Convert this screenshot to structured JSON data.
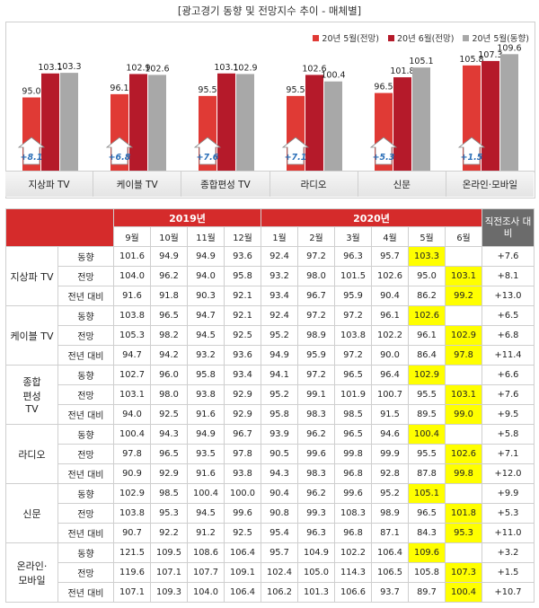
{
  "title": "[광고경기 동향 및 전망지수 추이 - 매체별]",
  "legend": [
    {
      "label": "20년 5월(전망)",
      "color": "#e03a35"
    },
    {
      "label": "20년 6월(전망)",
      "color": "#b51a2a"
    },
    {
      "label": "20년 5월(동향)",
      "color": "#a8a8a8"
    }
  ],
  "chart_data": {
    "type": "bar",
    "title": "[광고경기 동향 및 전망지수 추이 - 매체별]",
    "categories": [
      "지상파 TV",
      "케이블 TV",
      "종합편성 TV",
      "라디오",
      "신문",
      "온라인·모바일"
    ],
    "series": [
      {
        "name": "20년 5월(전망)",
        "values": [
          95.0,
          96.1,
          95.5,
          95.5,
          96.5,
          105.8
        ]
      },
      {
        "name": "20년 6월(전망)",
        "values": [
          103.1,
          102.9,
          103.1,
          102.6,
          101.8,
          107.3
        ]
      },
      {
        "name": "20년 5월(동향)",
        "values": [
          103.3,
          102.6,
          102.9,
          100.4,
          105.1,
          109.6
        ]
      }
    ],
    "changes": [
      "+8.1",
      "+6.8",
      "+7.6",
      "+7.1",
      "+5.3",
      "+1.5"
    ]
  },
  "table": {
    "year_2019": "2019년",
    "year_2020": "2020년",
    "last_col_header": "직전조사 대비",
    "months_2019": [
      "9월",
      "10월",
      "11월",
      "12월"
    ],
    "months_2020": [
      "1월",
      "2월",
      "3월",
      "4월",
      "5월",
      "6월"
    ],
    "groups": [
      {
        "name": "지상파 TV",
        "rows": [
          {
            "label": "동향",
            "v": [
              "101.6",
              "94.9",
              "94.9",
              "93.6",
              "92.4",
              "97.2",
              "96.3",
              "95.7",
              "103.3",
              ""
            ],
            "diff": "+7.6"
          },
          {
            "label": "전망",
            "v": [
              "104.0",
              "96.2",
              "94.0",
              "95.8",
              "93.2",
              "98.0",
              "101.5",
              "102.6",
              "95.0",
              "103.1"
            ],
            "diff": "+8.1"
          },
          {
            "label": "전년 대비",
            "v": [
              "91.6",
              "91.8",
              "90.3",
              "92.1",
              "93.4",
              "96.7",
              "95.9",
              "90.4",
              "86.2",
              "99.2"
            ],
            "diff": "+13.0"
          }
        ]
      },
      {
        "name": "케이블 TV",
        "rows": [
          {
            "label": "동향",
            "v": [
              "103.8",
              "96.5",
              "94.7",
              "92.1",
              "92.4",
              "97.2",
              "97.2",
              "96.1",
              "102.6",
              ""
            ],
            "diff": "+6.5"
          },
          {
            "label": "전망",
            "v": [
              "105.3",
              "98.2",
              "94.5",
              "92.5",
              "95.2",
              "98.9",
              "103.8",
              "102.2",
              "96.1",
              "102.9"
            ],
            "diff": "+6.8"
          },
          {
            "label": "전년 대비",
            "v": [
              "94.7",
              "94.2",
              "93.2",
              "93.6",
              "94.9",
              "95.9",
              "97.2",
              "90.0",
              "86.4",
              "97.8"
            ],
            "diff": "+11.4"
          }
        ]
      },
      {
        "name": "종합\n편성\nTV",
        "rows": [
          {
            "label": "동향",
            "v": [
              "102.7",
              "96.0",
              "95.8",
              "93.4",
              "94.1",
              "97.2",
              "96.5",
              "96.4",
              "102.9",
              ""
            ],
            "diff": "+6.6"
          },
          {
            "label": "전망",
            "v": [
              "103.1",
              "98.0",
              "93.8",
              "92.9",
              "95.2",
              "99.1",
              "101.9",
              "100.7",
              "95.5",
              "103.1"
            ],
            "diff": "+7.6"
          },
          {
            "label": "전년 대비",
            "v": [
              "94.0",
              "92.5",
              "91.6",
              "92.9",
              "95.8",
              "98.3",
              "98.5",
              "91.5",
              "89.5",
              "99.0"
            ],
            "diff": "+9.5"
          }
        ]
      },
      {
        "name": "라디오",
        "rows": [
          {
            "label": "동향",
            "v": [
              "100.4",
              "94.3",
              "94.9",
              "96.7",
              "93.9",
              "96.2",
              "96.5",
              "94.6",
              "100.4",
              ""
            ],
            "diff": "+5.8"
          },
          {
            "label": "전망",
            "v": [
              "97.8",
              "96.5",
              "93.5",
              "97.8",
              "90.5",
              "99.6",
              "99.8",
              "99.9",
              "95.5",
              "102.6"
            ],
            "diff": "+7.1"
          },
          {
            "label": "전년 대비",
            "v": [
              "90.9",
              "92.9",
              "91.6",
              "93.8",
              "94.3",
              "98.3",
              "96.8",
              "92.8",
              "87.8",
              "99.8"
            ],
            "diff": "+12.0"
          }
        ]
      },
      {
        "name": "신문",
        "rows": [
          {
            "label": "동향",
            "v": [
              "102.9",
              "98.5",
              "100.4",
              "100.0",
              "90.4",
              "96.2",
              "99.6",
              "95.2",
              "105.1",
              ""
            ],
            "diff": "+9.9"
          },
          {
            "label": "전망",
            "v": [
              "103.8",
              "95.3",
              "94.5",
              "99.6",
              "90.8",
              "99.3",
              "108.3",
              "98.9",
              "96.5",
              "101.8"
            ],
            "diff": "+5.3"
          },
          {
            "label": "전년 대비",
            "v": [
              "90.7",
              "92.2",
              "91.2",
              "92.5",
              "95.4",
              "96.3",
              "96.8",
              "87.1",
              "84.3",
              "95.3"
            ],
            "diff": "+11.0"
          }
        ]
      },
      {
        "name": "온라인·\n모바일",
        "rows": [
          {
            "label": "동향",
            "v": [
              "121.5",
              "109.5",
              "108.6",
              "106.4",
              "95.7",
              "104.9",
              "102.2",
              "106.4",
              "109.6",
              ""
            ],
            "diff": "+3.2"
          },
          {
            "label": "전망",
            "v": [
              "119.6",
              "107.1",
              "107.7",
              "109.1",
              "102.4",
              "105.0",
              "114.3",
              "106.5",
              "105.8",
              "107.3"
            ],
            "diff": "+1.5"
          },
          {
            "label": "전년 대비",
            "v": [
              "107.1",
              "109.3",
              "104.0",
              "106.4",
              "106.2",
              "101.3",
              "106.6",
              "93.7",
              "89.7",
              "100.4"
            ],
            "diff": "+10.7"
          }
        ]
      }
    ]
  }
}
